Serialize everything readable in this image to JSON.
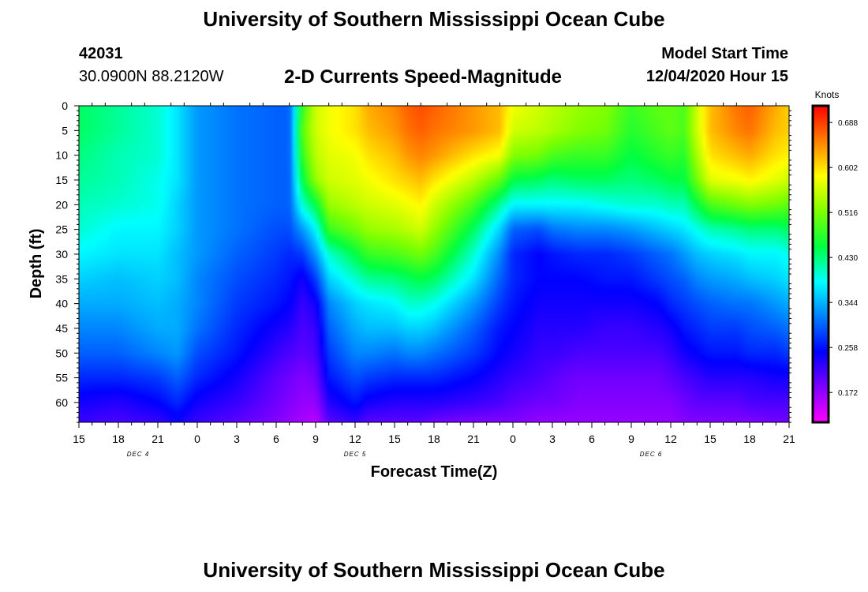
{
  "page": {
    "title_top": "University of Southern Mississippi Ocean Cube",
    "title_bottom": "University of Southern Mississippi Ocean Cube",
    "station_id": "42031",
    "station_coords": "30.0900N 88.2120W",
    "model_start_label": "Model Start Time",
    "model_start_value": "12/04/2020 Hour 15"
  },
  "chart_data": {
    "type": "heatmap",
    "title": "2-D Currents Speed-Magnitude",
    "xlabel": "Forecast Time(Z)",
    "ylabel": "Depth (ft)",
    "x_ticks": [
      "15",
      "18",
      "21",
      "0",
      "3",
      "6",
      "9",
      "12",
      "15",
      "18",
      "21",
      "0",
      "3",
      "6",
      "9",
      "12",
      "15",
      "18",
      "21"
    ],
    "x_tick_hours": [
      0,
      3,
      6,
      9,
      12,
      15,
      18,
      21,
      24,
      27,
      30,
      33,
      36,
      39,
      42,
      45,
      48,
      51,
      54
    ],
    "day_labels": [
      {
        "label": "DEC 4",
        "hour": 4.5
      },
      {
        "label": "DEC 5",
        "hour": 21
      },
      {
        "label": "DEC 6",
        "hour": 43.5
      }
    ],
    "y_ticks": [
      0,
      5,
      10,
      15,
      20,
      25,
      30,
      35,
      40,
      45,
      50,
      55,
      60
    ],
    "xlim": [
      0,
      54
    ],
    "ylim": [
      0,
      64
    ],
    "colorbar": {
      "label": "Knots",
      "ticks": [
        "0.688",
        "0.602",
        "0.516",
        "0.430",
        "0.344",
        "0.258",
        "0.172"
      ],
      "tick_values": [
        0.688,
        0.602,
        0.516,
        0.43,
        0.344,
        0.258,
        0.172
      ],
      "range": [
        0.115,
        0.72
      ],
      "stops": [
        "#ff00ff",
        "#7f00ff",
        "#0000ff",
        "#0080ff",
        "#00ffff",
        "#00ff40",
        "#80ff00",
        "#ffff00",
        "#ff8000",
        "#ff0000"
      ]
    },
    "time_hours": [
      0,
      3,
      6,
      7.5,
      9,
      12,
      15,
      16,
      17,
      18,
      19,
      21,
      22,
      24,
      25,
      26,
      27,
      30,
      32,
      33,
      35,
      36,
      38,
      40,
      42,
      44,
      45,
      46,
      47,
      48,
      50,
      51,
      53,
      54
    ],
    "depth_ft": [
      0,
      5,
      10,
      15,
      20,
      25,
      30,
      35,
      40,
      45,
      50,
      55,
      60,
      64
    ],
    "values": [
      [
        0.44,
        0.44,
        0.43,
        0.42,
        0.41,
        0.4,
        0.38,
        0.36,
        0.34,
        0.32,
        0.3,
        0.27,
        0.24,
        0.22
      ],
      [
        0.42,
        0.42,
        0.41,
        0.41,
        0.4,
        0.38,
        0.37,
        0.35,
        0.34,
        0.32,
        0.3,
        0.27,
        0.23,
        0.21
      ],
      [
        0.4,
        0.4,
        0.4,
        0.39,
        0.39,
        0.38,
        0.37,
        0.36,
        0.35,
        0.34,
        0.32,
        0.28,
        0.25,
        0.22
      ],
      [
        0.37,
        0.37,
        0.37,
        0.37,
        0.36,
        0.36,
        0.35,
        0.35,
        0.34,
        0.34,
        0.33,
        0.3,
        0.27,
        0.24
      ],
      [
        0.33,
        0.33,
        0.33,
        0.33,
        0.33,
        0.33,
        0.33,
        0.32,
        0.32,
        0.31,
        0.29,
        0.27,
        0.24,
        0.22
      ],
      [
        0.31,
        0.31,
        0.31,
        0.31,
        0.31,
        0.31,
        0.3,
        0.29,
        0.28,
        0.27,
        0.26,
        0.24,
        0.22,
        0.2
      ],
      [
        0.3,
        0.3,
        0.3,
        0.3,
        0.3,
        0.29,
        0.28,
        0.27,
        0.26,
        0.24,
        0.22,
        0.2,
        0.19,
        0.18
      ],
      [
        0.3,
        0.3,
        0.3,
        0.3,
        0.3,
        0.29,
        0.27,
        0.26,
        0.25,
        0.23,
        0.21,
        0.19,
        0.18,
        0.17
      ],
      [
        0.48,
        0.5,
        0.48,
        0.45,
        0.4,
        0.33,
        0.28,
        0.24,
        0.22,
        0.21,
        0.2,
        0.18,
        0.17,
        0.16
      ],
      [
        0.56,
        0.56,
        0.55,
        0.53,
        0.45,
        0.38,
        0.33,
        0.28,
        0.24,
        0.22,
        0.21,
        0.19,
        0.17,
        0.15
      ],
      [
        0.58,
        0.58,
        0.57,
        0.56,
        0.53,
        0.48,
        0.4,
        0.36,
        0.32,
        0.3,
        0.28,
        0.26,
        0.23,
        0.2
      ],
      [
        0.6,
        0.6,
        0.58,
        0.57,
        0.55,
        0.51,
        0.45,
        0.4,
        0.36,
        0.34,
        0.32,
        0.29,
        0.26,
        0.22
      ],
      [
        0.63,
        0.62,
        0.6,
        0.58,
        0.56,
        0.53,
        0.48,
        0.42,
        0.37,
        0.35,
        0.32,
        0.28,
        0.24,
        0.2
      ],
      [
        0.65,
        0.64,
        0.62,
        0.6,
        0.57,
        0.54,
        0.49,
        0.43,
        0.38,
        0.35,
        0.31,
        0.27,
        0.23,
        0.2
      ],
      [
        0.67,
        0.66,
        0.64,
        0.61,
        0.58,
        0.55,
        0.5,
        0.44,
        0.4,
        0.36,
        0.32,
        0.27,
        0.23,
        0.2
      ],
      [
        0.68,
        0.67,
        0.65,
        0.62,
        0.59,
        0.56,
        0.51,
        0.45,
        0.4,
        0.36,
        0.32,
        0.27,
        0.23,
        0.2
      ],
      [
        0.67,
        0.66,
        0.64,
        0.6,
        0.56,
        0.53,
        0.49,
        0.44,
        0.39,
        0.35,
        0.31,
        0.27,
        0.23,
        0.19
      ],
      [
        0.64,
        0.64,
        0.6,
        0.55,
        0.49,
        0.44,
        0.4,
        0.37,
        0.33,
        0.3,
        0.28,
        0.25,
        0.22,
        0.18
      ],
      [
        0.62,
        0.62,
        0.58,
        0.5,
        0.42,
        0.36,
        0.32,
        0.3,
        0.28,
        0.26,
        0.25,
        0.23,
        0.21,
        0.18
      ],
      [
        0.58,
        0.56,
        0.52,
        0.45,
        0.38,
        0.3,
        0.27,
        0.27,
        0.26,
        0.25,
        0.24,
        0.22,
        0.2,
        0.18
      ],
      [
        0.56,
        0.55,
        0.51,
        0.44,
        0.38,
        0.29,
        0.25,
        0.25,
        0.24,
        0.23,
        0.22,
        0.21,
        0.19,
        0.17
      ],
      [
        0.55,
        0.54,
        0.49,
        0.43,
        0.38,
        0.31,
        0.26,
        0.25,
        0.24,
        0.23,
        0.22,
        0.2,
        0.19,
        0.17
      ],
      [
        0.53,
        0.52,
        0.48,
        0.44,
        0.38,
        0.32,
        0.27,
        0.25,
        0.24,
        0.23,
        0.21,
        0.19,
        0.18,
        0.17
      ],
      [
        0.52,
        0.51,
        0.48,
        0.44,
        0.39,
        0.32,
        0.27,
        0.26,
        0.24,
        0.22,
        0.21,
        0.19,
        0.18,
        0.17
      ],
      [
        0.48,
        0.47,
        0.45,
        0.43,
        0.4,
        0.33,
        0.28,
        0.26,
        0.24,
        0.22,
        0.21,
        0.19,
        0.18,
        0.17
      ],
      [
        0.5,
        0.49,
        0.47,
        0.44,
        0.4,
        0.35,
        0.3,
        0.28,
        0.25,
        0.23,
        0.21,
        0.19,
        0.18,
        0.17
      ],
      [
        0.5,
        0.5,
        0.48,
        0.45,
        0.41,
        0.36,
        0.31,
        0.29,
        0.27,
        0.24,
        0.22,
        0.2,
        0.18,
        0.17
      ],
      [
        0.49,
        0.49,
        0.47,
        0.45,
        0.41,
        0.37,
        0.33,
        0.3,
        0.28,
        0.26,
        0.24,
        0.21,
        0.19,
        0.18
      ],
      [
        0.56,
        0.56,
        0.54,
        0.51,
        0.45,
        0.39,
        0.35,
        0.32,
        0.29,
        0.27,
        0.25,
        0.22,
        0.2,
        0.18
      ],
      [
        0.62,
        0.62,
        0.6,
        0.57,
        0.49,
        0.41,
        0.36,
        0.33,
        0.3,
        0.28,
        0.26,
        0.23,
        0.2,
        0.18
      ],
      [
        0.66,
        0.65,
        0.62,
        0.58,
        0.51,
        0.42,
        0.37,
        0.34,
        0.31,
        0.28,
        0.26,
        0.23,
        0.2,
        0.18
      ],
      [
        0.67,
        0.66,
        0.63,
        0.59,
        0.52,
        0.43,
        0.38,
        0.35,
        0.31,
        0.29,
        0.27,
        0.23,
        0.21,
        0.18
      ],
      [
        0.63,
        0.62,
        0.6,
        0.57,
        0.51,
        0.43,
        0.38,
        0.36,
        0.33,
        0.3,
        0.27,
        0.24,
        0.21,
        0.19
      ],
      [
        0.61,
        0.61,
        0.59,
        0.56,
        0.5,
        0.44,
        0.39,
        0.37,
        0.34,
        0.31,
        0.28,
        0.24,
        0.21,
        0.19
      ]
    ]
  }
}
